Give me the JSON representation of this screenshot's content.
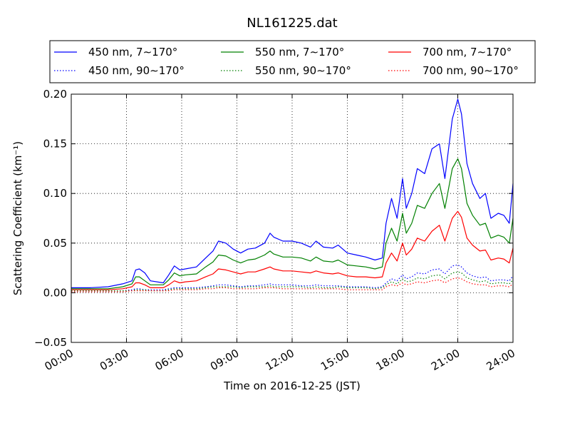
{
  "chart_data": {
    "type": "line",
    "title": "NL161225.dat",
    "xlabel": "Time on 2016-12-25 (JST)",
    "ylabel": "Scattering Coefficient (km⁻¹)",
    "xlim": [
      0,
      24
    ],
    "ylim": [
      -0.05,
      0.2
    ],
    "grid": true,
    "legend_position": "top",
    "x_ticks": [
      {
        "x": 0,
        "label": "00:00"
      },
      {
        "x": 3,
        "label": "03:00"
      },
      {
        "x": 6,
        "label": "06:00"
      },
      {
        "x": 9,
        "label": "09:00"
      },
      {
        "x": 12,
        "label": "12:00"
      },
      {
        "x": 15,
        "label": "15:00"
      },
      {
        "x": 18,
        "label": "18:00"
      },
      {
        "x": 21,
        "label": "21:00"
      },
      {
        "x": 24,
        "label": "24:00"
      }
    ],
    "y_ticks": [
      {
        "y": -0.05,
        "label": "−0.05"
      },
      {
        "y": 0.0,
        "label": "0.00"
      },
      {
        "y": 0.05,
        "label": "0.05"
      },
      {
        "y": 0.1,
        "label": "0.10"
      },
      {
        "y": 0.15,
        "label": "0.15"
      },
      {
        "y": 0.2,
        "label": "0.20"
      }
    ],
    "x": [
      0,
      1,
      2,
      2.8,
      3.3,
      3.5,
      3.7,
      4.0,
      4.3,
      5.0,
      5.3,
      5.6,
      5.9,
      6.2,
      6.8,
      7.3,
      7.7,
      8.0,
      8.4,
      8.8,
      9.2,
      9.6,
      10.0,
      10.5,
      10.8,
      11.0,
      11.5,
      12.0,
      12.5,
      13.0,
      13.3,
      13.7,
      14.2,
      14.5,
      15.0,
      15.5,
      16.0,
      16.5,
      16.9,
      17.1,
      17.4,
      17.7,
      18.0,
      18.2,
      18.5,
      18.8,
      19.2,
      19.6,
      20.0,
      20.3,
      20.7,
      21.0,
      21.2,
      21.5,
      21.8,
      22.2,
      22.5,
      22.8,
      23.2,
      23.5,
      23.8,
      24.0
    ],
    "series": [
      {
        "name": "450 nm, 7∼170°",
        "color": "#0000ff",
        "dash": "solid",
        "values": [
          0.005,
          0.005,
          0.006,
          0.009,
          0.012,
          0.023,
          0.024,
          0.02,
          0.012,
          0.01,
          0.018,
          0.027,
          0.023,
          0.024,
          0.026,
          0.035,
          0.042,
          0.052,
          0.05,
          0.044,
          0.04,
          0.044,
          0.045,
          0.05,
          0.06,
          0.056,
          0.052,
          0.052,
          0.05,
          0.046,
          0.052,
          0.046,
          0.045,
          0.048,
          0.04,
          0.038,
          0.036,
          0.033,
          0.035,
          0.07,
          0.095,
          0.075,
          0.115,
          0.085,
          0.1,
          0.125,
          0.12,
          0.145,
          0.15,
          0.115,
          0.175,
          0.195,
          0.18,
          0.13,
          0.11,
          0.095,
          0.1,
          0.075,
          0.08,
          0.078,
          0.07,
          0.11
        ]
      },
      {
        "name": "550 nm, 7∼170°",
        "color": "#008000",
        "dash": "solid",
        "values": [
          0.004,
          0.004,
          0.004,
          0.006,
          0.009,
          0.016,
          0.016,
          0.012,
          0.008,
          0.008,
          0.013,
          0.02,
          0.017,
          0.018,
          0.019,
          0.026,
          0.031,
          0.038,
          0.037,
          0.033,
          0.03,
          0.033,
          0.034,
          0.038,
          0.042,
          0.039,
          0.036,
          0.036,
          0.035,
          0.032,
          0.036,
          0.032,
          0.031,
          0.033,
          0.028,
          0.027,
          0.026,
          0.024,
          0.026,
          0.05,
          0.065,
          0.052,
          0.08,
          0.06,
          0.07,
          0.088,
          0.085,
          0.1,
          0.11,
          0.085,
          0.125,
          0.135,
          0.125,
          0.09,
          0.078,
          0.068,
          0.07,
          0.055,
          0.058,
          0.056,
          0.05,
          0.075
        ]
      },
      {
        "name": "700 nm, 7∼170°",
        "color": "#ff0000",
        "dash": "solid",
        "values": [
          0.003,
          0.003,
          0.003,
          0.004,
          0.006,
          0.01,
          0.01,
          0.008,
          0.005,
          0.005,
          0.008,
          0.012,
          0.01,
          0.011,
          0.012,
          0.016,
          0.019,
          0.024,
          0.023,
          0.021,
          0.019,
          0.021,
          0.021,
          0.024,
          0.026,
          0.024,
          0.022,
          0.022,
          0.021,
          0.02,
          0.022,
          0.02,
          0.019,
          0.02,
          0.017,
          0.016,
          0.016,
          0.015,
          0.016,
          0.03,
          0.04,
          0.032,
          0.05,
          0.038,
          0.044,
          0.055,
          0.052,
          0.062,
          0.068,
          0.052,
          0.075,
          0.082,
          0.076,
          0.055,
          0.048,
          0.042,
          0.043,
          0.033,
          0.035,
          0.034,
          0.03,
          0.045
        ]
      },
      {
        "name": "450 nm, 90∼170°",
        "color": "#0000ff",
        "dash": "dotted",
        "values": [
          0.002,
          0.002,
          0.002,
          0.002,
          0.003,
          0.004,
          0.004,
          0.003,
          0.003,
          0.003,
          0.004,
          0.005,
          0.005,
          0.005,
          0.005,
          0.006,
          0.007,
          0.008,
          0.008,
          0.007,
          0.006,
          0.007,
          0.007,
          0.008,
          0.009,
          0.008,
          0.008,
          0.008,
          0.007,
          0.007,
          0.008,
          0.007,
          0.007,
          0.007,
          0.006,
          0.006,
          0.006,
          0.005,
          0.006,
          0.01,
          0.014,
          0.012,
          0.018,
          0.014,
          0.016,
          0.02,
          0.019,
          0.023,
          0.024,
          0.019,
          0.027,
          0.028,
          0.026,
          0.02,
          0.017,
          0.015,
          0.016,
          0.012,
          0.013,
          0.013,
          0.012,
          0.017
        ]
      },
      {
        "name": "550 nm, 90∼170°",
        "color": "#008000",
        "dash": "dotted",
        "values": [
          0.002,
          0.002,
          0.002,
          0.002,
          0.002,
          0.003,
          0.003,
          0.003,
          0.002,
          0.002,
          0.003,
          0.004,
          0.004,
          0.004,
          0.004,
          0.005,
          0.006,
          0.006,
          0.006,
          0.006,
          0.005,
          0.006,
          0.006,
          0.006,
          0.007,
          0.006,
          0.006,
          0.006,
          0.006,
          0.005,
          0.006,
          0.005,
          0.005,
          0.006,
          0.005,
          0.005,
          0.005,
          0.004,
          0.005,
          0.008,
          0.011,
          0.009,
          0.014,
          0.011,
          0.012,
          0.015,
          0.014,
          0.017,
          0.018,
          0.014,
          0.02,
          0.021,
          0.02,
          0.015,
          0.013,
          0.011,
          0.012,
          0.009,
          0.01,
          0.01,
          0.009,
          0.013
        ]
      },
      {
        "name": "700 nm, 90∼170°",
        "color": "#ff0000",
        "dash": "dotted",
        "values": [
          0.001,
          0.001,
          0.001,
          0.001,
          0.002,
          0.002,
          0.002,
          0.002,
          0.002,
          0.002,
          0.002,
          0.003,
          0.003,
          0.003,
          0.003,
          0.004,
          0.004,
          0.005,
          0.005,
          0.004,
          0.004,
          0.004,
          0.004,
          0.005,
          0.005,
          0.005,
          0.004,
          0.004,
          0.004,
          0.004,
          0.004,
          0.004,
          0.004,
          0.004,
          0.003,
          0.003,
          0.003,
          0.003,
          0.003,
          0.006,
          0.008,
          0.007,
          0.01,
          0.008,
          0.009,
          0.011,
          0.01,
          0.012,
          0.013,
          0.01,
          0.014,
          0.015,
          0.014,
          0.011,
          0.009,
          0.008,
          0.008,
          0.006,
          0.007,
          0.007,
          0.006,
          0.009
        ]
      }
    ]
  }
}
